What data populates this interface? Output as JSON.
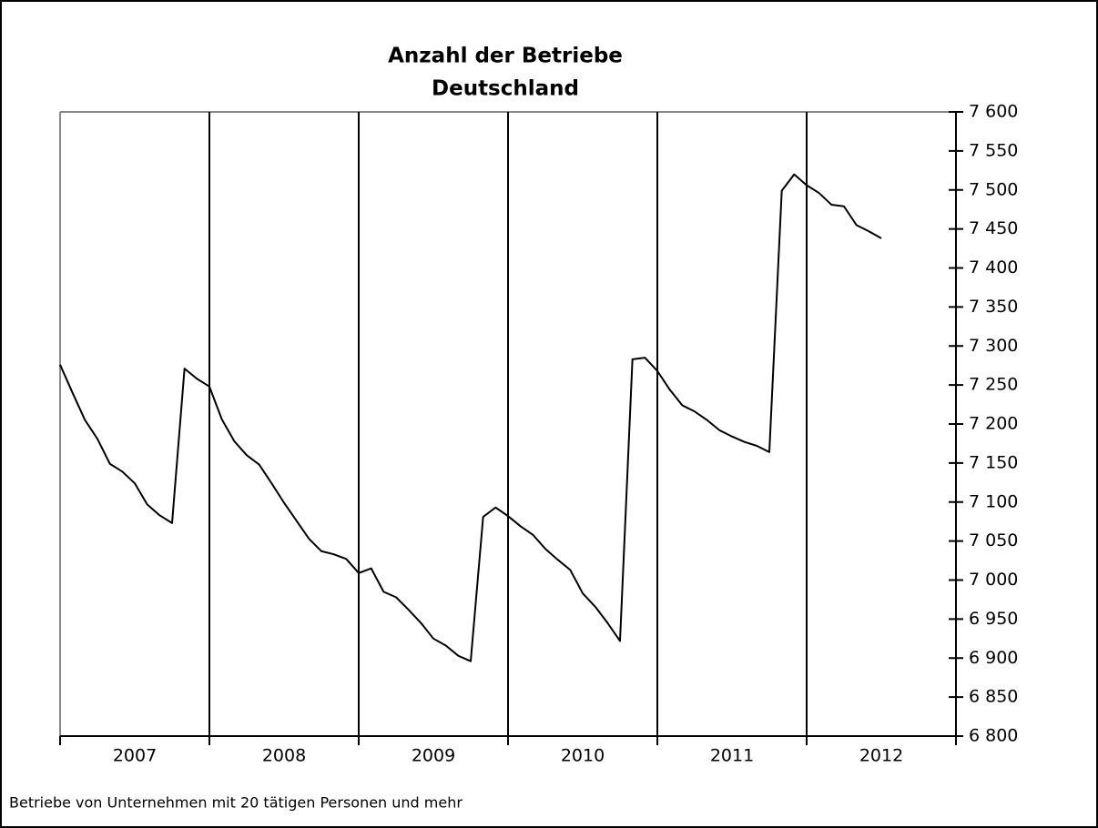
{
  "chart_data": {
    "type": "line",
    "title": "Anzahl der Betriebe",
    "subtitle": "Deutschland",
    "footnote": "Betriebe von Unternehmen mit 20 tätigen Personen und mehr",
    "categories": [
      null,
      null,
      null,
      null,
      null,
      null,
      "2007",
      null,
      null,
      null,
      null,
      null,
      null,
      null,
      null,
      null,
      null,
      null,
      "2008",
      null,
      null,
      null,
      null,
      null,
      null,
      null,
      null,
      null,
      null,
      null,
      "2009",
      null,
      null,
      null,
      null,
      null,
      null,
      null,
      null,
      null,
      null,
      null,
      "2010",
      null,
      null,
      null,
      null,
      null,
      null,
      null,
      null,
      null,
      null,
      null,
      "2011",
      null,
      null,
      null,
      null,
      null,
      null,
      null,
      null,
      null,
      null,
      null,
      "2012"
    ],
    "series": [
      {
        "name": "Betriebe",
        "color": "#000000",
        "values": [
          7276,
          7240,
          7205,
          7181,
          7149,
          7139,
          7124,
          7097,
          7083,
          7073,
          7271,
          7258,
          7248,
          7206,
          7178,
          7160,
          7148,
          7124,
          7099,
          7076,
          7053,
          7037,
          7033,
          7027,
          7009,
          7015,
          6985,
          6978,
          6962,
          6945,
          6925,
          6916,
          6903,
          6896,
          7081,
          7093,
          7082,
          7069,
          7058,
          7040,
          7026,
          7013,
          6983,
          6966,
          6945,
          6922,
          7283,
          7285,
          7268,
          7244,
          7224,
          7216,
          7205,
          7192,
          7184,
          7177,
          7172,
          7164,
          7499,
          7520,
          7506,
          7496,
          7481,
          7479,
          7455,
          7447,
          7438
        ]
      }
    ],
    "ylim": [
      6800,
      7600
    ],
    "yticks": [
      {
        "value": 6800,
        "label": "6 800"
      },
      {
        "value": 6850,
        "label": "6 850"
      },
      {
        "value": 6900,
        "label": "6 900"
      },
      {
        "value": 6950,
        "label": "6 950"
      },
      {
        "value": 7000,
        "label": "7 000"
      },
      {
        "value": 7050,
        "label": "7 050"
      },
      {
        "value": 7100,
        "label": "7 100"
      },
      {
        "value": 7150,
        "label": "7 150"
      },
      {
        "value": 7200,
        "label": "7 200"
      },
      {
        "value": 7250,
        "label": "7 250"
      },
      {
        "value": 7300,
        "label": "7 300"
      },
      {
        "value": 7350,
        "label": "7 350"
      },
      {
        "value": 7400,
        "label": "7 400"
      },
      {
        "value": 7450,
        "label": "7 450"
      },
      {
        "value": 7500,
        "label": "7 500"
      },
      {
        "value": 7550,
        "label": "7 550"
      },
      {
        "value": 7600,
        "label": "7 600"
      }
    ],
    "yaxis_position": "right"
  }
}
